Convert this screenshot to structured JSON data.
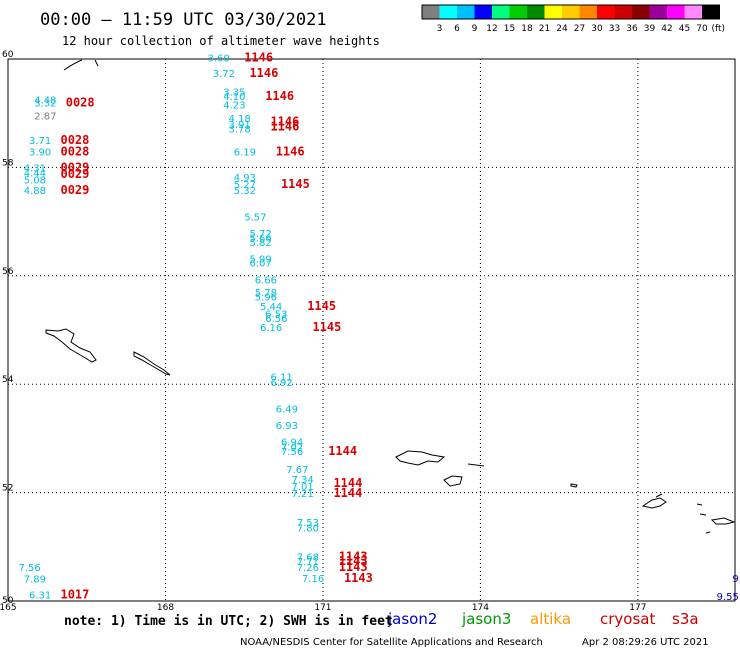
{
  "title": "00:00 — 11:59 UTC 03/30/2021",
  "subtitle": "12 hour collection of altimeter wave heights",
  "color_scale": {
    "labels": [
      "3",
      "6",
      "9",
      "12",
      "15",
      "18",
      "21",
      "24",
      "27",
      "30",
      "33",
      "36",
      "39",
      "42",
      "45",
      "70"
    ],
    "unit": "(ft)",
    "colors": [
      "#7f7f7f",
      "#00ffff",
      "#00bfff",
      "#0000ff",
      "#00ff7f",
      "#00cc00",
      "#008800",
      "#ffff00",
      "#ffcc00",
      "#ff8800",
      "#ff0000",
      "#cc0000",
      "#880000",
      "#990099",
      "#ff00ff",
      "#ff88ff",
      "#000000"
    ]
  },
  "map": {
    "lat_labels": [
      "60",
      "58",
      "56",
      "54",
      "52",
      "50"
    ],
    "lon_labels": [
      "165",
      "168",
      "171",
      "174",
      "177"
    ]
  },
  "observations": [
    {
      "value": "3.60",
      "sat": "cryosat",
      "lon": 168.8,
      "lat": 59.95
    },
    {
      "value": "1146",
      "sat": "s3a",
      "kind": "time",
      "lon": 169.5,
      "lat": 59.95
    },
    {
      "value": "3.72",
      "sat": "cryosat",
      "lon": 168.9,
      "lat": 59.67
    },
    {
      "value": "1146",
      "sat": "s3a",
      "kind": "time",
      "lon": 169.6,
      "lat": 59.67
    },
    {
      "value": "4.48",
      "sat": "cryosat",
      "lon": 165.5,
      "lat": 59.18
    },
    {
      "value": "3.32",
      "sat": "cryosat",
      "lon": 165.5,
      "lat": 59.12
    },
    {
      "value": "0028",
      "sat": "s3a",
      "kind": "time",
      "lon": 166.1,
      "lat": 59.12
    },
    {
      "value": "2.87",
      "sat": "jason2",
      "lon": 165.5,
      "lat": 58.88
    },
    {
      "value": "3.35",
      "sat": "cryosat",
      "lon": 169.1,
      "lat": 59.33
    },
    {
      "value": "4.10",
      "sat": "cryosat",
      "lon": 169.1,
      "lat": 59.24
    },
    {
      "value": "1146",
      "sat": "s3a",
      "kind": "time",
      "lon": 169.9,
      "lat": 59.24
    },
    {
      "value": "4.23",
      "sat": "cryosat",
      "lon": 169.1,
      "lat": 59.09
    },
    {
      "value": "4.18",
      "sat": "cryosat",
      "lon": 169.2,
      "lat": 58.84
    },
    {
      "value": "1146",
      "sat": "s3a",
      "kind": "time",
      "lon": 170.0,
      "lat": 58.77
    },
    {
      "value": "3.91",
      "sat": "cryosat",
      "lon": 169.2,
      "lat": 58.73
    },
    {
      "value": "3.78",
      "sat": "cryosat",
      "lon": 169.2,
      "lat": 58.64
    },
    {
      "value": "1146",
      "sat": "s3a",
      "kind": "time",
      "lon": 170.0,
      "lat": 58.68
    },
    {
      "value": "3.71",
      "sat": "cryosat",
      "lon": 165.4,
      "lat": 58.43
    },
    {
      "value": "0028",
      "sat": "s3a",
      "kind": "time",
      "lon": 166.0,
      "lat": 58.43
    },
    {
      "value": "3.90",
      "sat": "cryosat",
      "lon": 165.4,
      "lat": 58.22
    },
    {
      "value": "0028",
      "sat": "s3a",
      "kind": "time",
      "lon": 166.0,
      "lat": 58.22
    },
    {
      "value": "6.19",
      "sat": "cryosat",
      "lon": 169.3,
      "lat": 58.22
    },
    {
      "value": "1146",
      "sat": "s3a",
      "kind": "time",
      "lon": 170.1,
      "lat": 58.22
    },
    {
      "value": "4.31",
      "sat": "cryosat",
      "lon": 165.3,
      "lat": 57.92
    },
    {
      "value": "0029",
      "sat": "s3a",
      "kind": "time",
      "lon": 166.0,
      "lat": 57.92
    },
    {
      "value": "4.44",
      "sat": "cryosat",
      "lon": 165.3,
      "lat": 57.83
    },
    {
      "value": "0029",
      "sat": "s3a",
      "kind": "time",
      "lon": 166.0,
      "lat": 57.8
    },
    {
      "value": "5.08",
      "sat": "cryosat",
      "lon": 165.3,
      "lat": 57.7
    },
    {
      "value": "4.88",
      "sat": "cryosat",
      "lon": 165.3,
      "lat": 57.51
    },
    {
      "value": "0029",
      "sat": "s3a",
      "kind": "time",
      "lon": 166.0,
      "lat": 57.51
    },
    {
      "value": "4.93",
      "sat": "cryosat",
      "lon": 169.3,
      "lat": 57.75
    },
    {
      "value": "5.27",
      "sat": "cryosat",
      "lon": 169.3,
      "lat": 57.62
    },
    {
      "value": "5.32",
      "sat": "cryosat",
      "lon": 169.3,
      "lat": 57.51
    },
    {
      "value": "1145",
      "sat": "s3a",
      "kind": "time",
      "lon": 170.2,
      "lat": 57.62
    },
    {
      "value": "5.57",
      "sat": "cryosat",
      "lon": 169.5,
      "lat": 57.02
    },
    {
      "value": "5.72",
      "sat": "cryosat",
      "lon": 169.6,
      "lat": 56.72
    },
    {
      "value": "5.66",
      "sat": "cryosat",
      "lon": 169.6,
      "lat": 56.63
    },
    {
      "value": "5.82",
      "sat": "cryosat",
      "lon": 169.6,
      "lat": 56.55
    },
    {
      "value": "5.99",
      "sat": "cryosat",
      "lon": 169.6,
      "lat": 56.25
    },
    {
      "value": "6.07",
      "sat": "cryosat",
      "lon": 169.6,
      "lat": 56.17
    },
    {
      "value": "6.66",
      "sat": "cryosat",
      "lon": 169.7,
      "lat": 55.86
    },
    {
      "value": "5.78",
      "sat": "cryosat",
      "lon": 169.7,
      "lat": 55.63
    },
    {
      "value": "5.96",
      "sat": "cryosat",
      "lon": 169.7,
      "lat": 55.54
    },
    {
      "value": "5.44",
      "sat": "cryosat",
      "lon": 169.8,
      "lat": 55.37
    },
    {
      "value": "1145",
      "sat": "s3a",
      "kind": "time",
      "lon": 170.7,
      "lat": 55.37
    },
    {
      "value": "6.53",
      "sat": "cryosat",
      "lon": 169.9,
      "lat": 55.23
    },
    {
      "value": "6.56",
      "sat": "cryosat",
      "lon": 169.9,
      "lat": 55.15
    },
    {
      "value": "6.16",
      "sat": "cryosat",
      "lon": 169.8,
      "lat": 54.98
    },
    {
      "value": "1145",
      "sat": "s3a",
      "kind": "time",
      "lon": 170.8,
      "lat": 54.98
    },
    {
      "value": "6.11",
      "sat": "cryosat",
      "lon": 170.0,
      "lat": 54.07
    },
    {
      "value": "6.92",
      "sat": "cryosat",
      "lon": 170.0,
      "lat": 53.97
    },
    {
      "value": "6.49",
      "sat": "cryosat",
      "lon": 170.1,
      "lat": 53.48
    },
    {
      "value": "6.93",
      "sat": "cryosat",
      "lon": 170.1,
      "lat": 53.17
    },
    {
      "value": "6.94",
      "sat": "cryosat",
      "lon": 170.2,
      "lat": 52.87
    },
    {
      "value": "7.02",
      "sat": "cryosat",
      "lon": 170.2,
      "lat": 52.78
    },
    {
      "value": "7.56",
      "sat": "cryosat",
      "lon": 170.2,
      "lat": 52.69
    },
    {
      "value": "1144",
      "sat": "s3a",
      "kind": "time",
      "lon": 171.1,
      "lat": 52.69
    },
    {
      "value": "7.67",
      "sat": "cryosat",
      "lon": 170.3,
      "lat": 52.36
    },
    {
      "value": "7.34",
      "sat": "cryosat",
      "lon": 170.4,
      "lat": 52.18
    },
    {
      "value": "1144",
      "sat": "s3a",
      "kind": "time",
      "lon": 171.2,
      "lat": 52.1
    },
    {
      "value": "7.01",
      "sat": "cryosat",
      "lon": 170.4,
      "lat": 52.05
    },
    {
      "value": "7.21",
      "sat": "cryosat",
      "lon": 170.4,
      "lat": 51.92
    },
    {
      "value": "1144",
      "sat": "s3a",
      "kind": "time",
      "lon": 171.2,
      "lat": 51.92
    },
    {
      "value": "7.53",
      "sat": "cryosat",
      "lon": 170.5,
      "lat": 51.38
    },
    {
      "value": "7.80",
      "sat": "cryosat",
      "lon": 170.5,
      "lat": 51.28
    },
    {
      "value": "7.68",
      "sat": "cryosat",
      "lon": 170.5,
      "lat": 50.75
    },
    {
      "value": "1143",
      "sat": "s3a",
      "kind": "time",
      "lon": 171.3,
      "lat": 50.75
    },
    {
      "value": "7.71",
      "sat": "cryosat",
      "lon": 170.5,
      "lat": 50.66
    },
    {
      "value": "1143",
      "sat": "s3a",
      "kind": "time",
      "lon": 171.3,
      "lat": 50.66
    },
    {
      "value": "7.26",
      "sat": "cryosat",
      "lon": 170.5,
      "lat": 50.55
    },
    {
      "value": "1143",
      "sat": "s3a",
      "kind": "time",
      "lon": 171.3,
      "lat": 50.55
    },
    {
      "value": "7.16",
      "sat": "cryosat",
      "lon": 170.6,
      "lat": 50.35
    },
    {
      "value": "1143",
      "sat": "s3a",
      "kind": "time",
      "lon": 171.4,
      "lat": 50.35
    },
    {
      "value": "7.56",
      "sat": "cryosat",
      "lon": 165.2,
      "lat": 50.55
    },
    {
      "value": "7.89",
      "sat": "cryosat",
      "lon": 165.3,
      "lat": 50.34
    },
    {
      "value": "6.31",
      "sat": "cryosat",
      "lon": 165.4,
      "lat": 50.05
    },
    {
      "value": "1017",
      "sat": "s3a",
      "kind": "time",
      "lon": 166.0,
      "lat": 50.05
    },
    {
      "value": "9",
      "sat": "jason2",
      "lon": 178.95,
      "lat": 50.58
    },
    {
      "value": "9.8",
      "sat": "jason2",
      "lon": 178.8,
      "lat": 50.35
    },
    {
      "value": "9.55",
      "sat": "jason2",
      "lon": 178.5,
      "lat": 50.02
    }
  ],
  "satellites": [
    {
      "name": "jason2",
      "color": "#0000cc"
    },
    {
      "name": "jason3",
      "color": "#009900"
    },
    {
      "name": "altika",
      "color": "#ff9900"
    },
    {
      "name": "cryosat",
      "color": "#cc0000"
    },
    {
      "name": "s3a",
      "color": "#cc0000"
    }
  ],
  "obs_colors": {
    "cryosat": "#00bfdf",
    "jason2": "#7f7f7f",
    "s3a": "#dd0000",
    "jason2_far": "#0000cc"
  },
  "note": "note: 1) Time is in UTC; 2) SWH is in feet",
  "credit": "NOAA/NESDIS Center for Satellite Applications and Research",
  "generated": "Apr  2 08:29:26 UTC 2021"
}
